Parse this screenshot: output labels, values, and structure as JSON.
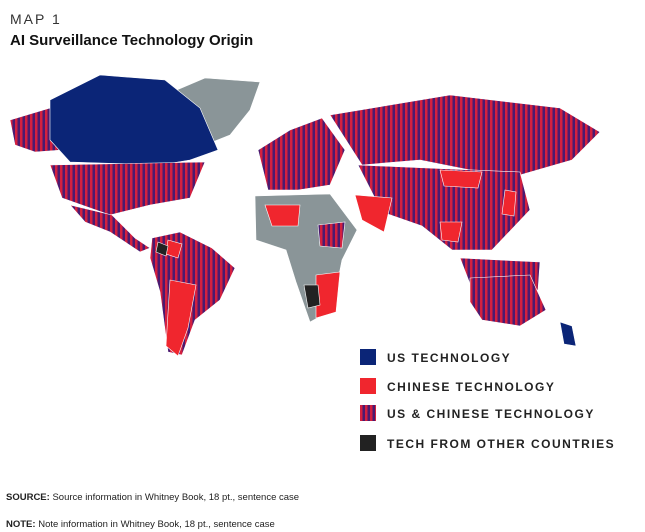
{
  "header": {
    "kicker": "MAP 1",
    "title": "AI Surveillance Technology Origin"
  },
  "legend": [
    "US TECHNOLOGY",
    "CHINESE TECHNOLOGY",
    "US & CHINESE TECHNOLOGY",
    "TECH FROM OTHER COUNTRIES"
  ],
  "footer": {
    "source_label": "SOURCE:",
    "source": "Source information in Whitney Book, 18 pt., sentence case",
    "note_label": "NOTE:",
    "note": "Note information in Whitney Book, 18 pt., sentence case"
  }
}
